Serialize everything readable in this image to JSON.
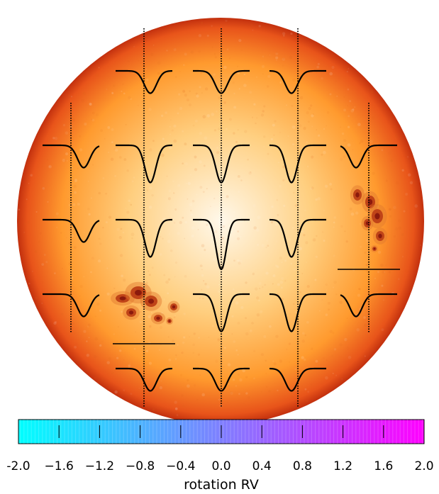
{
  "figure": {
    "disk_colors": {
      "center": "#fff8ea",
      "mid": "#ffcf80",
      "outer": "#ff9a2e",
      "limb": "#e8541a",
      "edge": "#c2300e"
    },
    "spot_colors": {
      "umbra": "#8b1a0c",
      "penumbra": "#c04418",
      "plage": "#e0782e"
    },
    "profile_color": "#000000",
    "marker_color": "#000000"
  },
  "chart_data": {
    "type": "grid",
    "description_note": "",
    "grid": {
      "rows": 5,
      "cols": 5
    },
    "cells": [
      {
        "row": 0,
        "col": 1,
        "depth": 0.45,
        "shift": -0.5
      },
      {
        "row": 0,
        "col": 2,
        "depth": 0.45,
        "shift": 0.0
      },
      {
        "row": 0,
        "col": 3,
        "depth": 0.45,
        "shift": 0.5
      },
      {
        "row": 1,
        "col": 0,
        "depth": 0.45,
        "shift": -1.0
      },
      {
        "row": 1,
        "col": 1,
        "depth": 0.75,
        "shift": -0.5
      },
      {
        "row": 1,
        "col": 2,
        "depth": 0.75,
        "shift": 0.0
      },
      {
        "row": 1,
        "col": 3,
        "depth": 0.75,
        "shift": 0.5
      },
      {
        "row": 1,
        "col": 4,
        "depth": 0.45,
        "shift": 1.0
      },
      {
        "row": 2,
        "col": 0,
        "depth": 0.45,
        "shift": -1.0,
        "spot": false
      },
      {
        "row": 2,
        "col": 1,
        "depth": 0.75,
        "shift": -0.5
      },
      {
        "row": 2,
        "col": 2,
        "depth": 1.0,
        "shift": 0.0
      },
      {
        "row": 2,
        "col": 3,
        "depth": 0.75,
        "shift": 0.5
      },
      {
        "row": 2,
        "col": 4,
        "depth": 0.0,
        "shift": 1.0,
        "spot": true
      },
      {
        "row": 3,
        "col": 0,
        "depth": 0.45,
        "shift": -1.0
      },
      {
        "row": 3,
        "col": 1,
        "depth": 0.0,
        "shift": -0.5,
        "spot": true
      },
      {
        "row": 3,
        "col": 2,
        "depth": 0.75,
        "shift": 0.0
      },
      {
        "row": 3,
        "col": 3,
        "depth": 0.75,
        "shift": 0.5
      },
      {
        "row": 3,
        "col": 4,
        "depth": 0.45,
        "shift": 1.0
      },
      {
        "row": 4,
        "col": 1,
        "depth": 0.45,
        "shift": -0.5
      },
      {
        "row": 4,
        "col": 2,
        "depth": 0.45,
        "shift": 0.0
      },
      {
        "row": 4,
        "col": 3,
        "depth": 0.45,
        "shift": 0.5
      }
    ],
    "colorbar": {
      "min": -2.0,
      "max": 2.0,
      "colors": [
        "#00ffff",
        "#7f7fff",
        "#ff00ff"
      ],
      "ticks": [
        -2.0,
        -1.6,
        -1.2,
        -0.8,
        -0.4,
        0.0,
        0.4,
        0.8,
        1.2,
        1.6,
        2.0
      ],
      "tick_labels": [
        "-2.0",
        "−1.6",
        "−1.2",
        "−0.8",
        "−0.4",
        "0.0",
        "0.4",
        "0.8",
        "1.2",
        "1.6",
        "2.0"
      ],
      "label": "rotation RV"
    }
  }
}
